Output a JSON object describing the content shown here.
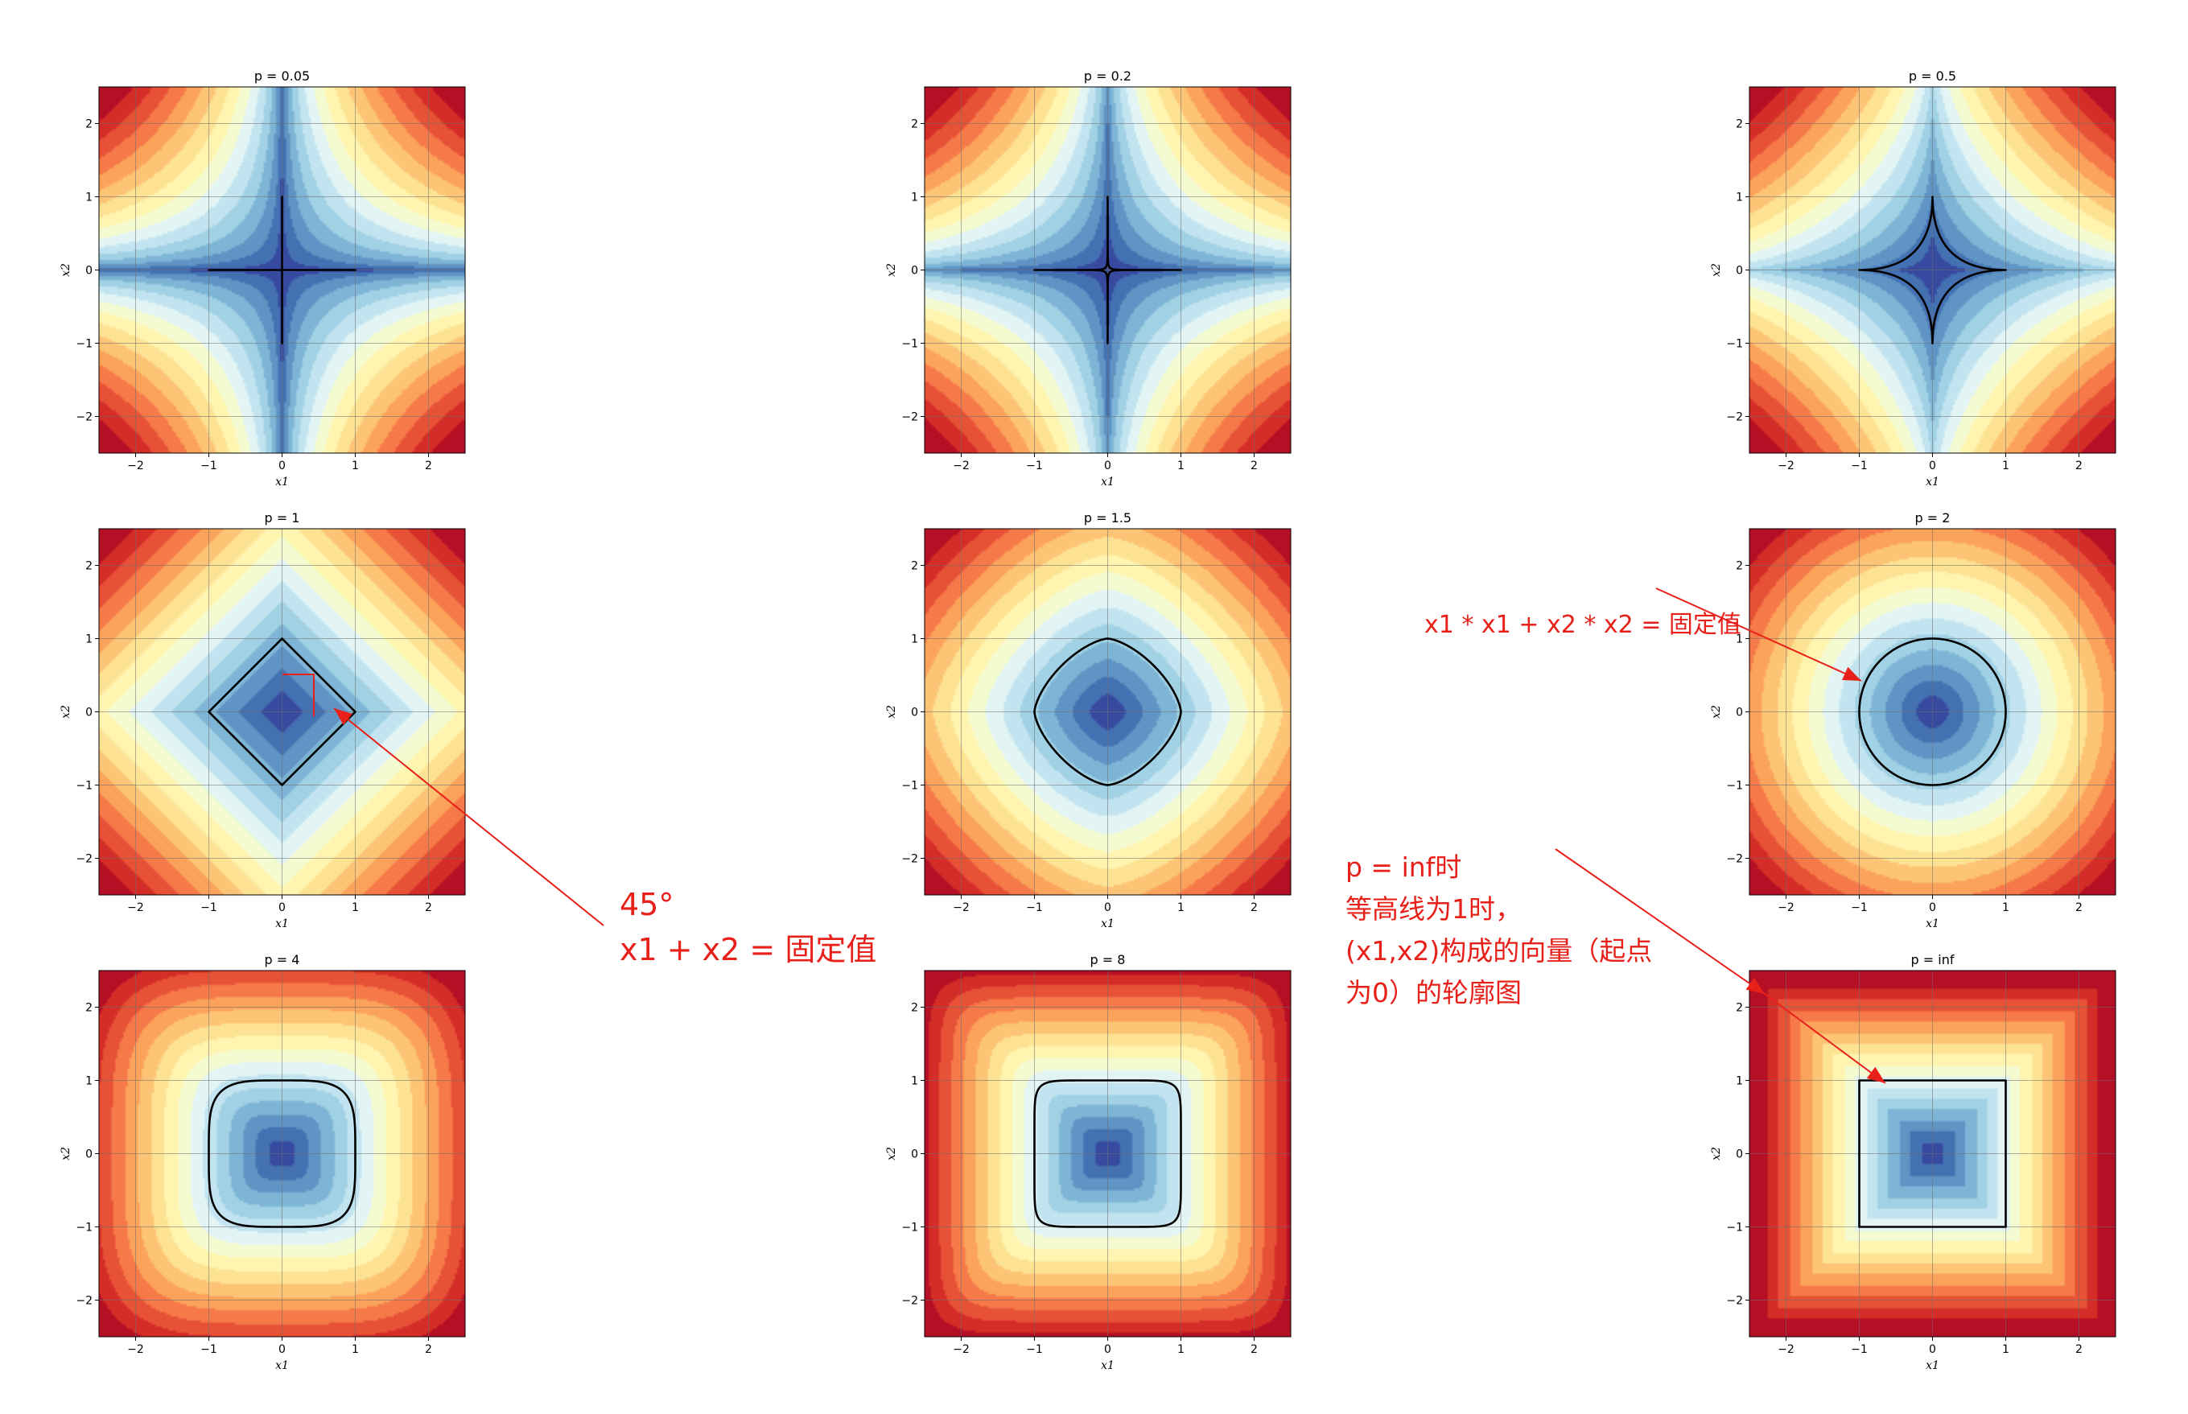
{
  "chart_data": {
    "type": "heatmap",
    "description_of_layout": "3x3",
    "grid": true,
    "xlim": [
      -2.5,
      2.5
    ],
    "ylim": [
      -2.5,
      2.5
    ],
    "xticks": [
      -2,
      -1,
      0,
      1,
      2
    ],
    "yticks": [
      -2,
      -1,
      0,
      1,
      2
    ],
    "xlabel": "x1",
    "ylabel": "x2",
    "colormap": "RdYlBu_r",
    "contour_level": 1,
    "contour_color": "#000000",
    "panels": [
      {
        "title": "p = 0.05",
        "p": 0.05
      },
      {
        "title": "p = 0.2",
        "p": 0.2
      },
      {
        "title": "p = 0.5",
        "p": 0.5
      },
      {
        "title": "p = 1",
        "p": 1
      },
      {
        "title": "p = 1.5",
        "p": 1.5
      },
      {
        "title": "p = 2",
        "p": 2
      },
      {
        "title": "p = 4",
        "p": 4
      },
      {
        "title": "p = 8",
        "p": 8
      },
      {
        "title": "p = inf",
        "p": "inf"
      }
    ]
  },
  "annotations": {
    "color": "#e8201a",
    "l2_text": "x1 * x1 + x2 * x2 = 固定值",
    "l1_line1": "45°",
    "l1_line2": "x1 + x2 = 固定值",
    "inf_lines": [
      "p = inf时",
      "等高线为1时，",
      "(x1,x2)构成的向量（起点",
      "为0）的轮廓图"
    ]
  }
}
